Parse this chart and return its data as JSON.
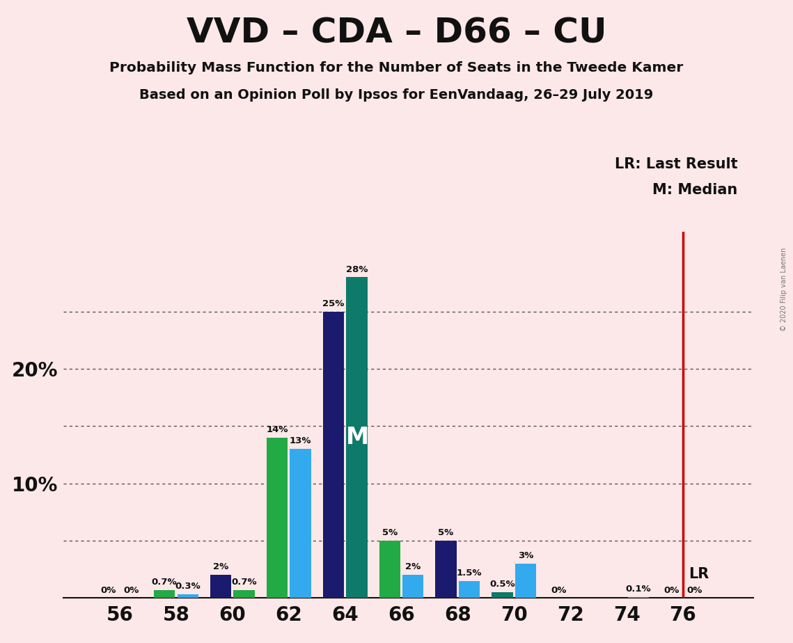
{
  "title": "VVD – CDA – D66 – CU",
  "subtitle1": "Probability Mass Function for the Number of Seats in the Tweede Kamer",
  "subtitle2": "Based on an Opinion Poll by Ipsos for EenVandaag, 26–29 July 2019",
  "copyright": "© 2020 Filip van Laenen",
  "background_color": "#fce8e8",
  "seat_positions": [
    56,
    58,
    60,
    62,
    64,
    66,
    68,
    70,
    72,
    74,
    76
  ],
  "left_values": [
    0.0,
    0.7,
    2.0,
    14.0,
    25.0,
    5.0,
    5.0,
    0.5,
    0.0,
    0.0,
    0.0
  ],
  "right_values": [
    0.0,
    0.3,
    0.7,
    13.0,
    28.0,
    2.0,
    1.5,
    3.0,
    0.0,
    0.1,
    0.0
  ],
  "left_colors": [
    "#22aa44",
    "#22aa44",
    "#1a1a6e",
    "#22aa44",
    "#1a1a6e",
    "#22aa44",
    "#1a1a6e",
    "#0d7a6a",
    "#22aa44",
    "#22aa44",
    "#22aa44"
  ],
  "right_colors": [
    "#33aaee",
    "#33aaee",
    "#22aa44",
    "#33aaee",
    "#0d7a6a",
    "#33aaee",
    "#33aaee",
    "#33aaee",
    "#33aaee",
    "#33aaee",
    "#33aaee"
  ],
  "left_labels": [
    "0%",
    "0.7%",
    "2%",
    "14%",
    "25%",
    "5%",
    "5%",
    "0.5%",
    "0%",
    "0%",
    "0%"
  ],
  "right_labels": [
    "0%",
    "0.3%",
    "0.7%",
    "13%",
    "28%",
    "2%",
    "1.5%",
    "3%",
    "0%",
    "0.1%",
    "0%"
  ],
  "show_left_label": [
    true,
    true,
    true,
    true,
    true,
    true,
    true,
    true,
    true,
    false,
    true
  ],
  "show_right_label": [
    true,
    true,
    true,
    true,
    true,
    true,
    true,
    true,
    false,
    true,
    true
  ],
  "median_seat": 64,
  "lr_seat": 76,
  "ytick_vals": [
    10,
    20
  ],
  "ytick_labels": [
    "10%",
    "20%"
  ],
  "hgrid_vals": [
    5,
    10,
    15,
    20,
    25
  ],
  "xlim": [
    54.0,
    78.5
  ],
  "ylim": [
    0,
    32
  ],
  "bar_width": 0.75,
  "bar_gap": 0.08,
  "legend_lr": "LR: Last Result",
  "legend_m": "M: Median",
  "lr_label": "LR"
}
